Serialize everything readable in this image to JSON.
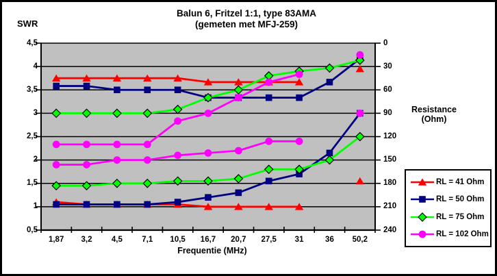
{
  "chart_data": {
    "type": "line",
    "title": "Balun 6, Fritzel 1:1, type 83AMA",
    "subtitle": "(gemeten met MFJ-259)",
    "x_label": "Frequentie (MHz)",
    "categories": [
      "1,87",
      "3,2",
      "4,5",
      "7,1",
      "10,5",
      "16,7",
      "20,7",
      "27,5",
      "31",
      "36",
      "50,2"
    ],
    "plot_bg_color": "#c0c0c0",
    "gridline_color": "#000000",
    "left_axis": {
      "label": "SWR",
      "min": 0.5,
      "max": 4.5,
      "step": 0.5,
      "tick_labels": [
        "4,5",
        "4",
        "3,5",
        "3",
        "2,5",
        "2",
        "1,5",
        "1",
        "0,5"
      ]
    },
    "right_axis": {
      "label_line1": "Resistance",
      "label_line2": "(Ohm)",
      "min": 0,
      "max": 240,
      "step": 30,
      "reversed": true,
      "tick_labels": [
        "0",
        "30",
        "60",
        "90",
        "120",
        "150",
        "180",
        "210",
        "240"
      ]
    },
    "legend": {
      "position": "right",
      "entries": [
        {
          "label": "RL = 41 Ohm",
          "color": "#ff0000",
          "marker": "triangle"
        },
        {
          "label": "RL = 50 Ohm",
          "color": "#000080",
          "marker": "square"
        },
        {
          "label": "RL = 75 Ohm",
          "color": "#00ff00",
          "marker": "diamond"
        },
        {
          "label": "RL = 102 Ohm",
          "color": "#ff00ff",
          "marker": "circle"
        }
      ]
    },
    "series": [
      {
        "id": "swr-rl41",
        "name": "RL = 41 Ohm",
        "measure": "SWR",
        "axis": "left",
        "color": "#ff0000",
        "marker": "triangle",
        "values": [
          1.1,
          1.05,
          1.05,
          1.05,
          1.05,
          1.0,
          1.0,
          1.0,
          1.0,
          null,
          1.55
        ]
      },
      {
        "id": "res-rl41",
        "name": "RL = 41 Ohm",
        "measure": "Resistance",
        "axis": "right",
        "color": "#ff0000",
        "marker": "triangle",
        "values": [
          45,
          45,
          45,
          45,
          45,
          50,
          50,
          50,
          50,
          null,
          33
        ]
      },
      {
        "id": "swr-rl50",
        "name": "RL = 50 Ohm",
        "measure": "SWR",
        "axis": "left",
        "color": "#000080",
        "marker": "square",
        "values": [
          1.05,
          1.05,
          1.05,
          1.05,
          1.1,
          1.2,
          1.3,
          1.55,
          1.7,
          2.15,
          3.0
        ]
      },
      {
        "id": "res-rl50",
        "name": "RL = 50 Ohm",
        "measure": "Resistance",
        "axis": "right",
        "color": "#000080",
        "marker": "square",
        "values": [
          55,
          55,
          60,
          60,
          60,
          70,
          70,
          70,
          70,
          50,
          20
        ]
      },
      {
        "id": "swr-rl75",
        "name": "RL = 75 Ohm",
        "measure": "SWR",
        "axis": "left",
        "color": "#00ff00",
        "marker": "diamond",
        "values": [
          1.45,
          1.45,
          1.5,
          1.5,
          1.55,
          1.55,
          1.6,
          1.8,
          1.8,
          2.0,
          2.5
        ]
      },
      {
        "id": "res-rl75",
        "name": "RL = 75 Ohm",
        "measure": "Resistance",
        "axis": "right",
        "color": "#00ff00",
        "marker": "diamond",
        "values": [
          90,
          90,
          90,
          90,
          85,
          70,
          60,
          42,
          36,
          32,
          22
        ]
      },
      {
        "id": "swr-rl102",
        "name": "RL = 102 Ohm",
        "measure": "SWR",
        "axis": "left",
        "color": "#ff00ff",
        "marker": "circle",
        "values": [
          1.9,
          1.9,
          2.0,
          2.0,
          2.1,
          2.15,
          2.2,
          2.4,
          2.4,
          null,
          3.0
        ]
      },
      {
        "id": "res-rl102",
        "name": "RL = 102 Ohm",
        "measure": "Resistance",
        "axis": "right",
        "color": "#ff00ff",
        "marker": "circle",
        "values": [
          130,
          130,
          130,
          130,
          100,
          90,
          70,
          50,
          40,
          null,
          15
        ]
      }
    ]
  }
}
